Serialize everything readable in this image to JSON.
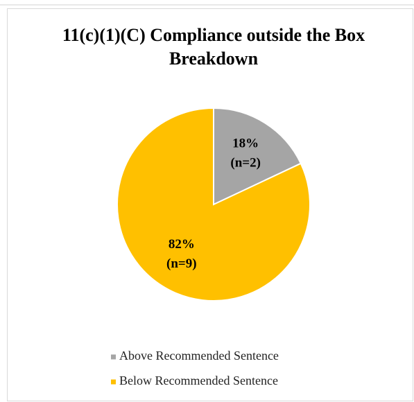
{
  "chart_data": {
    "type": "pie",
    "title": "11(c)(1)(C) Compliance outside the Box Breakdown",
    "categories": [
      "Above Recommended Sentence",
      "Below Recommended Sentence"
    ],
    "values": [
      18,
      82
    ],
    "value_labels": [
      "18%",
      "82%"
    ],
    "count_labels": [
      "(n=2)",
      "(n=9)"
    ],
    "colors": [
      "#a5a5a5",
      "#ffc000"
    ],
    "legend": "bottom"
  }
}
